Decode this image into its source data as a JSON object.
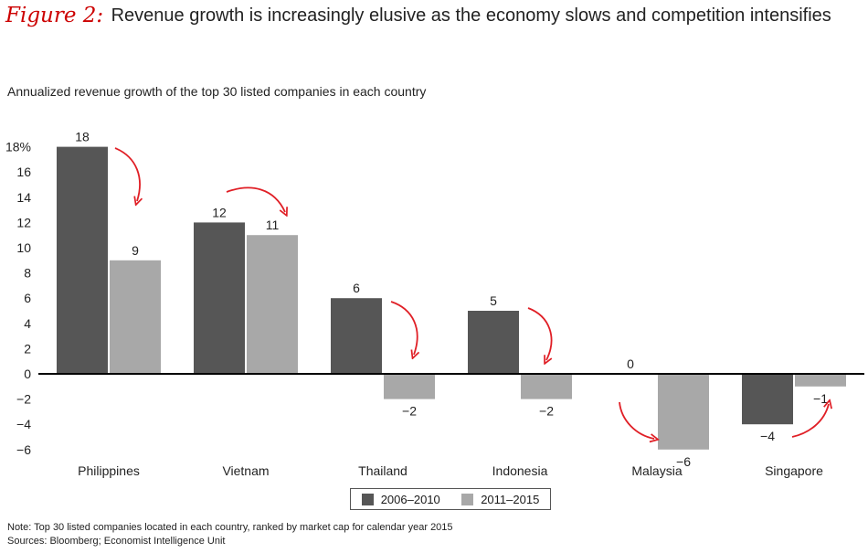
{
  "header": {
    "figure_label": "Figure 2:",
    "title": "Revenue growth is increasingly elusive as the economy slows and competition intensifies"
  },
  "colors": {
    "dark": "#565656",
    "light": "#a8a8a8",
    "arrow": "#e01f26",
    "axis": "#000000"
  },
  "chart_data": {
    "type": "bar",
    "subtitle": "Annualized revenue growth of the top 30 listed companies in each country",
    "categories": [
      "Philippines",
      "Vietnam",
      "Thailand",
      "Indonesia",
      "Malaysia",
      "Singapore"
    ],
    "series": [
      {
        "name": "2006–2010",
        "values": [
          18,
          12,
          6,
          5,
          0,
          -4
        ],
        "labels": [
          "18",
          "12",
          "6",
          "5",
          "0",
          "−4"
        ]
      },
      {
        "name": "2011–2015",
        "values": [
          9,
          11,
          -2,
          -2,
          -6,
          -1
        ],
        "labels": [
          "9",
          "11",
          "−2",
          "−2",
          "−6",
          "−1"
        ]
      }
    ],
    "ylim": [
      -6,
      18
    ],
    "yticks": [
      18,
      16,
      14,
      12,
      10,
      8,
      6,
      4,
      2,
      0,
      -2,
      -4,
      -6
    ],
    "ytick_labels": [
      "18%",
      "16",
      "14",
      "12",
      "10",
      "8",
      "6",
      "4",
      "2",
      "0",
      "−2",
      "−4",
      "−6"
    ],
    "legend_position": "bottom-center"
  },
  "legend": {
    "series1": "2006–2010",
    "series2": "2011–2015"
  },
  "footer": {
    "note": "Note: Top 30 listed companies located in each country, ranked by market cap for calendar year 2015",
    "sources": "Sources: Bloomberg; Economist Intelligence Unit"
  }
}
